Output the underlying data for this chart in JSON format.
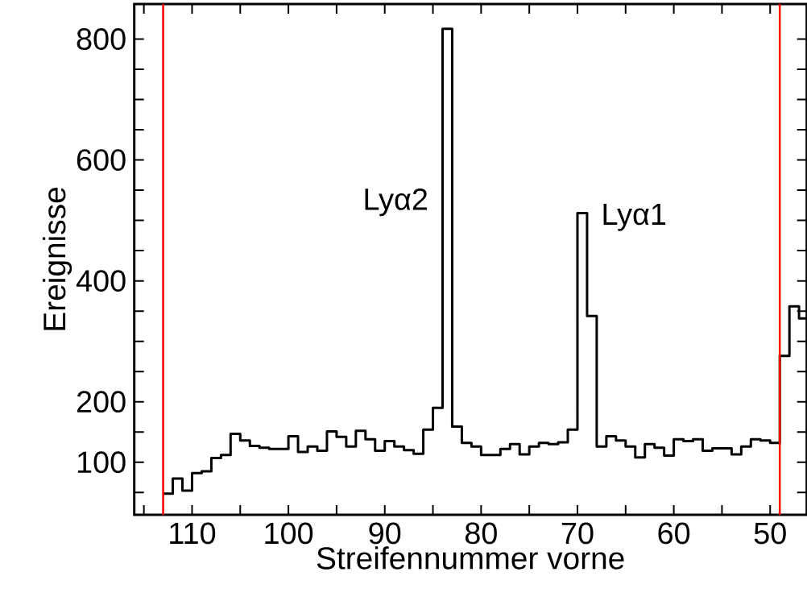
{
  "chart_data": {
    "type": "histogram",
    "xlabel": "Streifennummer vorne",
    "ylabel": "Ereignisse",
    "color": "#000000",
    "bins": [
      113,
      112,
      111,
      110,
      109,
      108,
      107,
      106,
      105,
      104,
      103,
      102,
      101,
      100,
      99,
      98,
      97,
      96,
      95,
      94,
      93,
      92,
      91,
      90,
      89,
      88,
      87,
      86,
      85,
      84,
      83,
      82,
      81,
      80,
      79,
      78,
      77,
      76,
      75,
      74,
      73,
      72,
      71,
      70,
      69,
      68,
      67,
      66,
      65,
      64,
      63,
      62,
      61,
      60,
      59,
      58,
      57,
      56,
      55,
      54,
      53,
      52,
      51,
      50,
      49,
      48,
      47,
      46
    ],
    "values": [
      48,
      73,
      53,
      82,
      85,
      107,
      112,
      147,
      136,
      127,
      124,
      122,
      122,
      143,
      117,
      126,
      119,
      151,
      142,
      126,
      152,
      138,
      119,
      135,
      126,
      120,
      114,
      154,
      190,
      817,
      159,
      132,
      126,
      112,
      112,
      122,
      130,
      113,
      126,
      132,
      130,
      133,
      154,
      512,
      342,
      126,
      143,
      136,
      126,
      108,
      130,
      124,
      111,
      138,
      135,
      138,
      119,
      123,
      123,
      113,
      126,
      138,
      136,
      132,
      276,
      358,
      338
    ],
    "xlim": [
      116,
      46.2
    ],
    "ylim": [
      13,
      858
    ],
    "xticks": [
      {
        "value": 115,
        "label": null
      },
      110,
      {
        "value": 105,
        "label": null
      },
      100,
      {
        "value": 95,
        "label": null
      },
      90,
      {
        "value": 85,
        "label": null
      },
      80,
      {
        "value": 75,
        "label": null
      },
      70,
      {
        "value": 65,
        "label": null
      },
      60,
      {
        "value": 55,
        "label": null
      },
      50
    ],
    "yticks": [
      {
        "value": 50,
        "label": null
      },
      100,
      {
        "value": 150,
        "label": null
      },
      200,
      {
        "value": 250,
        "label": null
      },
      {
        "value": 300,
        "label": null
      },
      {
        "value": 350,
        "label": null
      },
      400,
      {
        "value": 450,
        "label": null
      },
      {
        "value": 500,
        "label": null
      },
      {
        "value": 550,
        "label": null
      },
      600,
      {
        "value": 650,
        "label": null
      },
      {
        "value": 700,
        "label": null
      },
      {
        "value": 750,
        "label": null
      },
      800
    ],
    "ref_lines": [
      {
        "axis": "x",
        "value": 113,
        "color": "#ff0000"
      },
      {
        "axis": "x",
        "value": 49,
        "color": "#ff0000"
      }
    ],
    "annotations": [
      {
        "text": "Lyα2",
        "x": 84,
        "y": 530
      },
      {
        "text": "Lyα1",
        "x": 69,
        "y": 505
      }
    ]
  }
}
